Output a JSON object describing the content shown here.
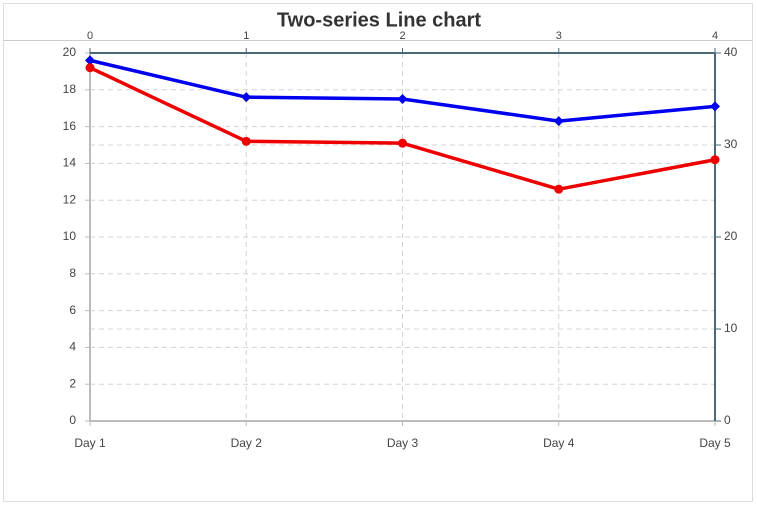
{
  "chart_data": {
    "type": "line",
    "title": "Two-series Line chart",
    "categories": [
      "Day 1",
      "Day 2",
      "Day 3",
      "Day 4",
      "Day 5"
    ],
    "series": [
      {
        "color": "#0000ee",
        "values": [
          19.6,
          17.6,
          17.5,
          16.3,
          17.1
        ]
      },
      {
        "color": "#ee0000",
        "values": [
          19.2,
          15.2,
          15.1,
          12.6,
          14.2
        ]
      }
    ],
    "ylim": [
      0,
      20
    ],
    "yticks": [
      0,
      2,
      4,
      6,
      8,
      10,
      12,
      14,
      16,
      18,
      20
    ],
    "y2lim": [
      0,
      40
    ],
    "y2ticks": [
      0,
      10,
      20,
      30,
      40
    ],
    "x2lim": [
      0,
      4
    ],
    "x2ticks": [
      0,
      1,
      2,
      3,
      4
    ],
    "grid": true
  }
}
